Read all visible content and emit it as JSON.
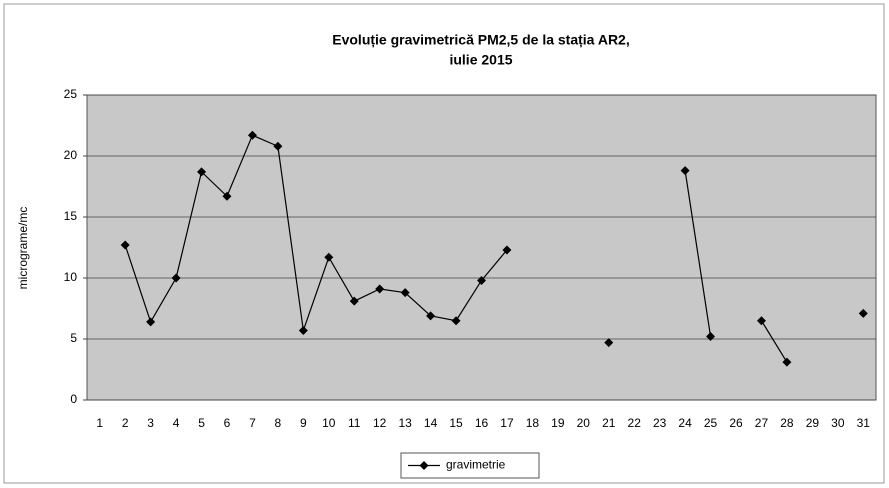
{
  "chart_data": {
    "type": "line",
    "title": "Evoluție  gravimetrică PM2,5 de la stația AR2,",
    "subtitle": "iulie 2015",
    "y_label": "micrograme/mc",
    "categories": [
      "1",
      "2",
      "3",
      "4",
      "5",
      "6",
      "7",
      "8",
      "9",
      "10",
      "11",
      "12",
      "13",
      "14",
      "15",
      "16",
      "17",
      "18",
      "19",
      "20",
      "21",
      "22",
      "23",
      "24",
      "25",
      "26",
      "27",
      "28",
      "29",
      "30",
      "31"
    ],
    "series": [
      {
        "name": "gravimetrie",
        "color": "#000000",
        "values": [
          null,
          12.7,
          6.4,
          10,
          18.7,
          16.7,
          21.7,
          20.8,
          5.7,
          11.7,
          8.1,
          9.1,
          8.8,
          6.9,
          6.5,
          9.8,
          12.3,
          null,
          null,
          null,
          4.7,
          null,
          null,
          18.8,
          5.2,
          null,
          6.5,
          3.1,
          null,
          null,
          7.1
        ]
      }
    ],
    "ylim": [
      0,
      25
    ],
    "yticks": [
      0,
      5,
      10,
      15,
      20,
      25
    ],
    "grid": true,
    "legend": "bottom"
  }
}
